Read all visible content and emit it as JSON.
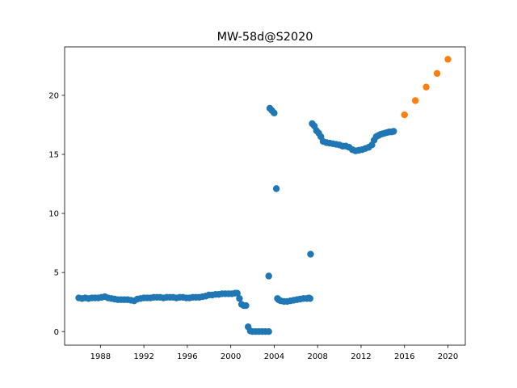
{
  "chart_data": {
    "type": "scatter",
    "title": "MW-58d@S2020",
    "xlabel": "",
    "ylabel": "",
    "xlim": [
      1984.7,
      2021.6
    ],
    "ylim": [
      -1.15,
      24.1
    ],
    "xticks": [
      1988,
      1992,
      1996,
      2000,
      2004,
      2008,
      2012,
      2016,
      2020
    ],
    "yticks": [
      0,
      5,
      10,
      15,
      20
    ],
    "grid": false,
    "legend": "none",
    "series": [
      {
        "color": "#1f77b4",
        "x": [
          1986.0,
          1986.3,
          1986.6,
          1986.9,
          1987.2,
          1987.5,
          1987.8,
          1988.1,
          1988.4,
          1988.7,
          1989.0,
          1989.3,
          1989.6,
          1989.9,
          1990.2,
          1990.5,
          1990.8,
          1991.1,
          1991.4,
          1991.7,
          1992.0,
          1992.3,
          1992.6,
          1992.9,
          1993.2,
          1993.5,
          1993.8,
          1994.1,
          1994.4,
          1994.7,
          1995.0,
          1995.3,
          1995.6,
          1995.9,
          1996.2,
          1996.5,
          1996.8,
          1997.1,
          1997.4,
          1997.7,
          1998.0,
          1998.3,
          1998.6,
          1998.9,
          1999.2,
          1999.5,
          1999.8,
          2000.1,
          2000.4,
          2000.6,
          2000.8,
          2001.0,
          2001.2,
          2001.4,
          2001.6,
          2001.8,
          2002.0,
          2002.3,
          2002.6,
          2002.9,
          2003.2,
          2003.5,
          2003.5,
          2003.6,
          2003.8,
          2004.0,
          2004.2,
          2004.3,
          2004.4,
          2004.6,
          2004.9,
          2005.2,
          2005.5,
          2005.8,
          2006.1,
          2006.4,
          2006.7,
          2007.0,
          2007.2,
          2007.3,
          2007.35,
          2007.5,
          2007.7,
          2007.9,
          2008.1,
          2008.3,
          2008.5,
          2008.8,
          2009.1,
          2009.4,
          2009.7,
          2010.0,
          2010.3,
          2010.6,
          2010.9,
          2011.2,
          2011.5,
          2011.8,
          2012.1,
          2012.4,
          2012.7,
          2013.0,
          2013.2,
          2013.4,
          2013.6,
          2013.8,
          2014.0,
          2014.2,
          2014.4,
          2014.6,
          2014.8,
          2015.0
        ],
        "y": [
          2.85,
          2.8,
          2.85,
          2.8,
          2.85,
          2.85,
          2.85,
          2.9,
          2.95,
          2.85,
          2.8,
          2.75,
          2.7,
          2.7,
          2.7,
          2.7,
          2.65,
          2.6,
          2.75,
          2.8,
          2.85,
          2.85,
          2.85,
          2.9,
          2.9,
          2.9,
          2.85,
          2.9,
          2.9,
          2.9,
          2.85,
          2.9,
          2.9,
          2.85,
          2.85,
          2.9,
          2.9,
          2.9,
          2.95,
          3.0,
          3.1,
          3.1,
          3.15,
          3.15,
          3.2,
          3.2,
          3.2,
          3.2,
          3.25,
          3.25,
          2.8,
          2.3,
          2.2,
          2.2,
          0.4,
          0.05,
          0.0,
          0.0,
          0.0,
          0.0,
          0.0,
          0.0,
          4.7,
          18.9,
          18.7,
          18.5,
          12.1,
          2.8,
          2.7,
          2.6,
          2.55,
          2.55,
          2.6,
          2.65,
          2.7,
          2.75,
          2.8,
          2.8,
          2.85,
          2.8,
          6.55,
          17.6,
          17.4,
          17.0,
          16.8,
          16.5,
          16.1,
          16.0,
          15.95,
          15.9,
          15.85,
          15.8,
          15.7,
          15.7,
          15.6,
          15.4,
          15.3,
          15.35,
          15.4,
          15.5,
          15.6,
          15.8,
          16.2,
          16.5,
          16.6,
          16.7,
          16.75,
          16.8,
          16.85,
          16.9,
          16.9,
          16.95
        ]
      },
      {
        "color": "#ff7f0e",
        "x": [
          2016.0,
          2017.0,
          2018.0,
          2019.0,
          2020.0
        ],
        "y": [
          18.35,
          19.55,
          20.7,
          21.85,
          23.05
        ]
      }
    ]
  }
}
